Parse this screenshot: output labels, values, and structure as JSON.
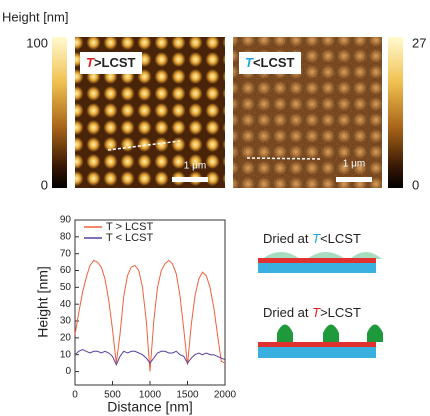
{
  "colorbar_label": "Height [nm]",
  "left_panel": {
    "scale_max": "100",
    "scale_min": "0",
    "label_T": "T",
    "label_rest": ">LCST",
    "scale_bar": "1 μm"
  },
  "right_panel": {
    "scale_max": "27",
    "scale_min": "0",
    "label_T": "T",
    "label_rest": "<LCST",
    "scale_bar": "1 μm"
  },
  "schematics": [
    {
      "prefix": "Dried at ",
      "T": "T",
      "suffix": "<LCST"
    },
    {
      "prefix": "Dried at ",
      "T": "T",
      "suffix": ">LCST"
    }
  ],
  "chart_data": {
    "type": "line",
    "xlabel": "Distance [nm]",
    "ylabel": "Height [nm]",
    "xlim": [
      0,
      2000
    ],
    "xticks": [
      0,
      500,
      1000,
      1500,
      2000
    ],
    "ylim": [
      -8,
      90
    ],
    "yticks": [
      0,
      10,
      20,
      30,
      40,
      50,
      60,
      70,
      80,
      90
    ],
    "x": [
      0,
      50,
      100,
      150,
      200,
      250,
      300,
      350,
      400,
      450,
      500,
      550,
      600,
      650,
      700,
      750,
      800,
      850,
      900,
      950,
      1000,
      1050,
      1100,
      1150,
      1200,
      1250,
      1300,
      1350,
      1400,
      1450,
      1500,
      1550,
      1600,
      1650,
      1700,
      1750,
      1800,
      1850,
      1900,
      1950,
      2000
    ],
    "series": [
      {
        "name": "T > LCST",
        "color": "#f0603a",
        "values": [
          22,
          35,
          47,
          56,
          63,
          66,
          65,
          62,
          55,
          42,
          25,
          5,
          22,
          45,
          57,
          62,
          63,
          60,
          50,
          30,
          0,
          30,
          50,
          60,
          64,
          66,
          64,
          58,
          45,
          25,
          4,
          28,
          45,
          55,
          59,
          57,
          50,
          38,
          22,
          6,
          5
        ]
      },
      {
        "name": "T < LCST",
        "color": "#5b3f9e",
        "values": [
          10,
          12,
          13,
          12,
          11,
          12,
          12,
          11,
          12,
          11,
          9,
          4,
          9,
          12,
          11,
          12,
          12,
          11,
          10,
          8,
          5,
          8,
          11,
          12,
          12,
          11,
          11,
          12,
          10,
          9,
          5,
          8,
          10,
          11,
          10,
          11,
          10,
          10,
          9,
          8,
          7
        ]
      }
    ]
  }
}
